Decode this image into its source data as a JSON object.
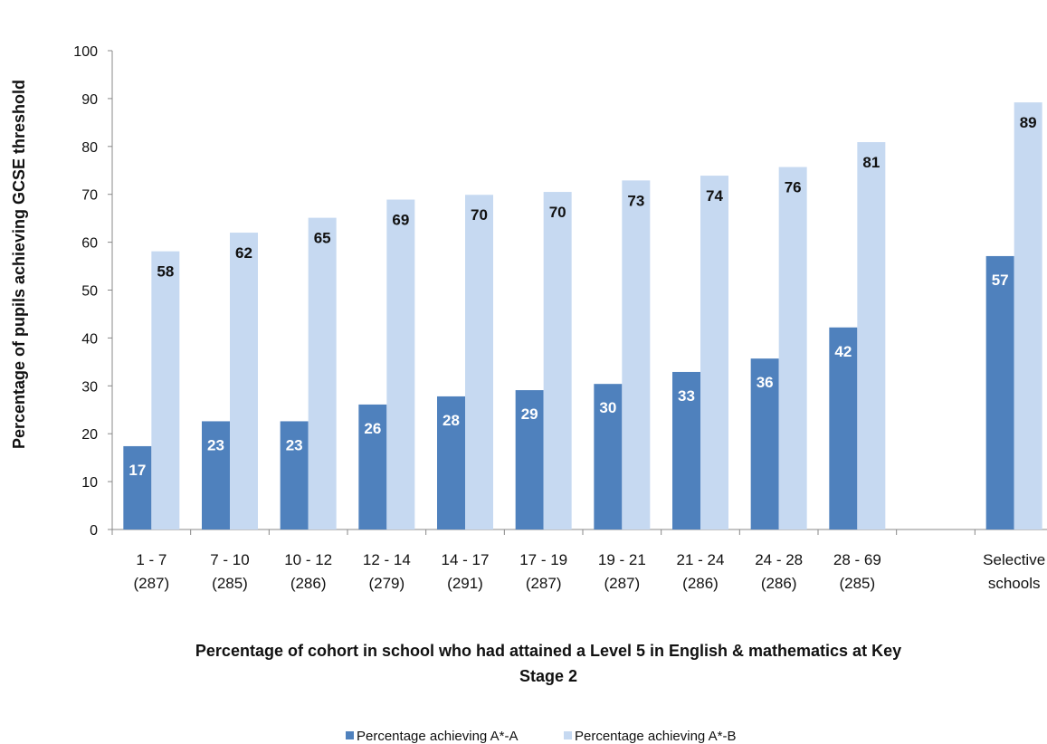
{
  "chart_data": {
    "type": "bar",
    "categories": [
      [
        "1 - 7",
        "(287)"
      ],
      [
        "7 - 10",
        "(285)"
      ],
      [
        "10 - 12",
        "(286)"
      ],
      [
        "12 - 14",
        "(279)"
      ],
      [
        "14 - 17",
        "(291)"
      ],
      [
        "17 - 19",
        "(287)"
      ],
      [
        "19 - 21",
        "(287)"
      ],
      [
        "21 - 24",
        "(286)"
      ],
      [
        "24 - 28",
        "(286)"
      ],
      [
        "28 - 69",
        "(285)"
      ],
      [
        "",
        ""
      ],
      [
        "Selective",
        "schools"
      ]
    ],
    "series": [
      {
        "name": "Percentage achieving A*-A",
        "color": "#4f81bd",
        "values": [
          17.4,
          22.6,
          22.6,
          26.1,
          27.8,
          29.1,
          30.4,
          32.9,
          35.7,
          42.2,
          null,
          57.1
        ],
        "labels": [
          "17",
          "23",
          "23",
          "26",
          "28",
          "29",
          "30",
          "33",
          "36",
          "42",
          "",
          "57"
        ]
      },
      {
        "name": "Percentage achieving A*-B",
        "color": "#c6d9f1",
        "values": [
          58.1,
          62.0,
          65.1,
          68.9,
          69.9,
          70.5,
          72.9,
          73.9,
          75.7,
          80.9,
          null,
          89.2
        ],
        "labels": [
          "58",
          "62",
          "65",
          "69",
          "70",
          "70",
          "73",
          "74",
          "76",
          "81",
          "",
          "89"
        ]
      }
    ],
    "ylim": [
      0,
      100
    ],
    "yticks": [
      "0",
      "10",
      "20",
      "30",
      "40",
      "50",
      "60",
      "70",
      "80",
      "90",
      "100"
    ],
    "xlabel": [
      "Percentage of cohort in school who had attained a Level 5 in English  & mathematics  at Key",
      "Stage 2"
    ],
    "ylabel": "Percentage of pupils  achieving  GCSE  threshold",
    "legend_position": "bottom",
    "grid": false
  }
}
